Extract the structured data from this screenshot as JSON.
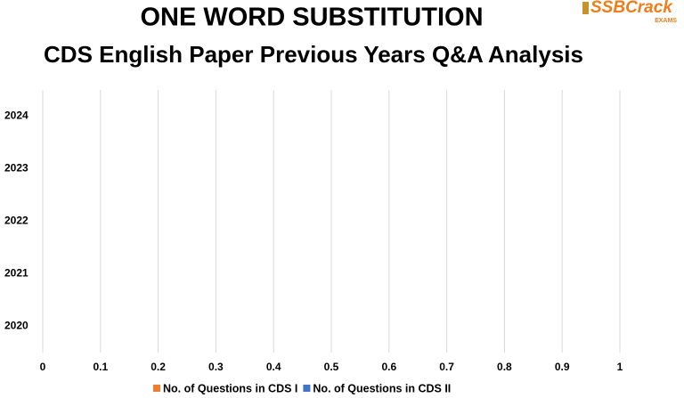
{
  "logo": {
    "name": "SSBCrack",
    "sub": "EXAMS"
  },
  "chart_data": {
    "type": "hbar",
    "title": "ONE WORD SUBSTITUTION",
    "subtitle": "CDS English Paper Previous Years Q&A Analysis",
    "categories": [
      "2020",
      "2021",
      "2022",
      "2023",
      "2024"
    ],
    "series": [
      {
        "name": "No. of Questions in CDS I",
        "color": "#ed7d31",
        "values": [
          0,
          0,
          0,
          0,
          0
        ]
      },
      {
        "name": "No. of Questions in CDS II",
        "color": "#4472c4",
        "values": [
          0,
          0,
          0,
          0,
          0
        ]
      }
    ],
    "xlim": [
      0,
      1
    ],
    "xticks": [
      0,
      0.1,
      0.2,
      0.3,
      0.4,
      0.5,
      0.6,
      0.7,
      0.8,
      0.9,
      1
    ],
    "grid": true,
    "legend": "bottom"
  }
}
